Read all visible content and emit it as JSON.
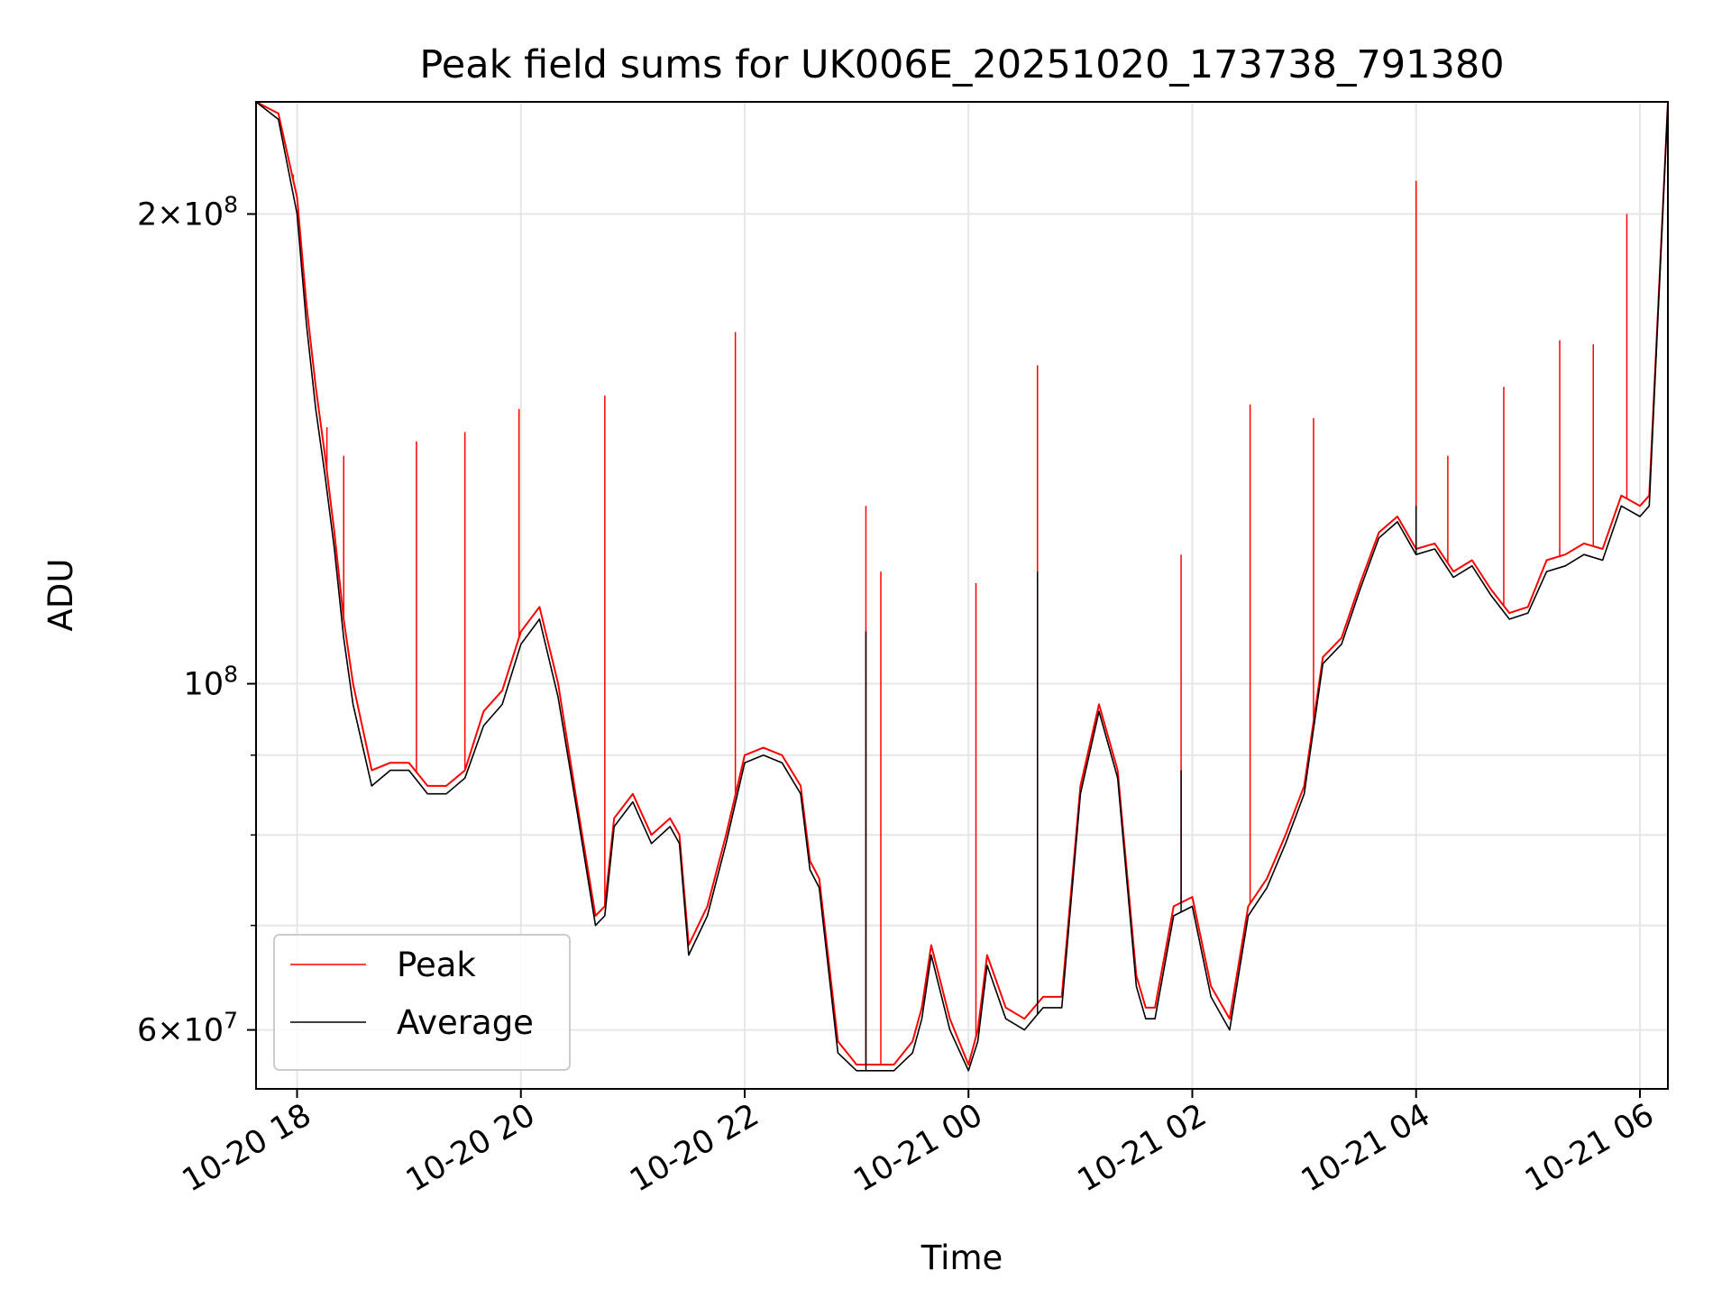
{
  "chart_data": {
    "type": "line",
    "title": "Peak field sums for UK006E_20251020_173738_791380",
    "xlabel": "Time",
    "ylabel": "ADU",
    "yscale": "log",
    "ylim": [
      55000000,
      236000000
    ],
    "xlim": [
      "2025-10-20 17:38",
      "2025-10-21 06:15"
    ],
    "grid": true,
    "legend_position": "lower left",
    "x_ticks": [
      "10-20 18",
      "10-20 20",
      "10-20 22",
      "10-21 00",
      "10-21 02",
      "10-21 04",
      "10-21 06"
    ],
    "x_tick_values": [
      "2025-10-20 18:00",
      "2025-10-20 20:00",
      "2025-10-20 22:00",
      "2025-10-21 00:00",
      "2025-10-21 02:00",
      "2025-10-21 04:00",
      "2025-10-21 06:00"
    ],
    "y_ticks": [
      {
        "value": 200000000,
        "mantissa": "2",
        "base": "10",
        "exp": "8"
      },
      {
        "value": 100000000,
        "mantissa": "",
        "base": "10",
        "exp": "8"
      },
      {
        "value": 60000000,
        "mantissa": "6",
        "base": "10",
        "exp": "7"
      }
    ],
    "y_minor_gridlines": [
      70000000,
      80000000,
      90000000
    ],
    "series": [
      {
        "name": "Peak",
        "color": "#ff0000",
        "x": [
          "2025-10-20 17:38",
          "2025-10-20 17:50",
          "2025-10-20 18:00",
          "2025-10-20 18:05",
          "2025-10-20 18:10",
          "2025-10-20 18:15",
          "2025-10-20 18:20",
          "2025-10-20 18:25",
          "2025-10-20 18:30",
          "2025-10-20 18:40",
          "2025-10-20 18:50",
          "2025-10-20 19:00",
          "2025-10-20 19:10",
          "2025-10-20 19:20",
          "2025-10-20 19:30",
          "2025-10-20 19:40",
          "2025-10-20 19:50",
          "2025-10-20 20:00",
          "2025-10-20 20:10",
          "2025-10-20 20:20",
          "2025-10-20 20:30",
          "2025-10-20 20:40",
          "2025-10-20 20:45",
          "2025-10-20 20:50",
          "2025-10-20 21:00",
          "2025-10-20 21:10",
          "2025-10-20 21:20",
          "2025-10-20 21:25",
          "2025-10-20 21:30",
          "2025-10-20 21:40",
          "2025-10-20 21:50",
          "2025-10-20 22:00",
          "2025-10-20 22:10",
          "2025-10-20 22:20",
          "2025-10-20 22:30",
          "2025-10-20 22:35",
          "2025-10-20 22:40",
          "2025-10-20 22:50",
          "2025-10-20 23:00",
          "2025-10-20 23:10",
          "2025-10-20 23:20",
          "2025-10-20 23:30",
          "2025-10-20 23:35",
          "2025-10-20 23:40",
          "2025-10-20 23:50",
          "2025-10-21 00:00",
          "2025-10-21 00:05",
          "2025-10-21 00:10",
          "2025-10-21 00:20",
          "2025-10-21 00:30",
          "2025-10-21 00:40",
          "2025-10-21 00:50",
          "2025-10-21 01:00",
          "2025-10-21 01:10",
          "2025-10-21 01:20",
          "2025-10-21 01:30",
          "2025-10-21 01:35",
          "2025-10-21 01:40",
          "2025-10-21 01:50",
          "2025-10-21 02:00",
          "2025-10-21 02:10",
          "2025-10-21 02:20",
          "2025-10-21 02:30",
          "2025-10-21 02:40",
          "2025-10-21 02:50",
          "2025-10-21 03:00",
          "2025-10-21 03:10",
          "2025-10-21 03:20",
          "2025-10-21 03:30",
          "2025-10-21 03:40",
          "2025-10-21 03:50",
          "2025-10-21 04:00",
          "2025-10-21 04:10",
          "2025-10-21 04:20",
          "2025-10-21 04:30",
          "2025-10-21 04:40",
          "2025-10-21 04:50",
          "2025-10-21 05:00",
          "2025-10-21 05:10",
          "2025-10-21 05:20",
          "2025-10-21 05:30",
          "2025-10-21 05:40",
          "2025-10-21 05:50",
          "2025-10-21 06:00",
          "2025-10-21 06:05",
          "2025-10-21 06:15"
        ],
        "y": [
          240000000,
          232000000,
          205000000,
          175000000,
          155000000,
          140000000,
          125000000,
          110000000,
          100000000,
          88000000,
          89000000,
          89000000,
          86000000,
          86000000,
          88000000,
          96000000,
          99000000,
          108000000,
          112000000,
          100000000,
          84000000,
          71000000,
          72000000,
          82000000,
          85000000,
          80000000,
          82000000,
          80000000,
          68000000,
          72000000,
          80000000,
          90000000,
          91000000,
          90000000,
          86000000,
          77000000,
          75000000,
          59000000,
          57000000,
          57000000,
          57000000,
          59000000,
          62000000,
          68000000,
          61000000,
          57000000,
          60000000,
          67000000,
          62000000,
          61000000,
          63000000,
          63000000,
          86000000,
          97000000,
          88000000,
          65000000,
          62000000,
          62000000,
          72000000,
          73000000,
          64000000,
          61000000,
          72000000,
          75000000,
          80000000,
          86000000,
          104000000,
          107000000,
          116000000,
          125000000,
          128000000,
          122000000,
          123000000,
          118000000,
          120000000,
          115000000,
          111000000,
          112000000,
          120000000,
          121000000,
          123000000,
          122000000,
          132000000,
          130000000,
          132000000,
          240000000
        ],
        "spikes": [
          {
            "x": "2025-10-20 17:58",
            "y": 212000000
          },
          {
            "x": "2025-10-20 18:16",
            "y": 146000000
          },
          {
            "x": "2025-10-20 18:25",
            "y": 140000000
          },
          {
            "x": "2025-10-20 19:04",
            "y": 143000000
          },
          {
            "x": "2025-10-20 19:30",
            "y": 145000000
          },
          {
            "x": "2025-10-20 19:59",
            "y": 150000000
          },
          {
            "x": "2025-10-20 20:45",
            "y": 153000000
          },
          {
            "x": "2025-10-20 21:55",
            "y": 168000000
          },
          {
            "x": "2025-10-20 23:05",
            "y": 130000000
          },
          {
            "x": "2025-10-20 23:13",
            "y": 118000000
          },
          {
            "x": "2025-10-21 00:04",
            "y": 116000000
          },
          {
            "x": "2025-10-21 00:37",
            "y": 160000000
          },
          {
            "x": "2025-10-21 01:54",
            "y": 121000000
          },
          {
            "x": "2025-10-21 02:31",
            "y": 151000000
          },
          {
            "x": "2025-10-21 03:05",
            "y": 148000000
          },
          {
            "x": "2025-10-21 04:00",
            "y": 210000000
          },
          {
            "x": "2025-10-21 04:17",
            "y": 140000000
          },
          {
            "x": "2025-10-21 04:47",
            "y": 155000000
          },
          {
            "x": "2025-10-21 05:17",
            "y": 166000000
          },
          {
            "x": "2025-10-21 05:35",
            "y": 165000000
          },
          {
            "x": "2025-10-21 05:53",
            "y": 200000000
          }
        ]
      },
      {
        "name": "Average",
        "color": "#000000",
        "x": [
          "2025-10-20 17:38",
          "2025-10-20 17:50",
          "2025-10-20 18:00",
          "2025-10-20 18:05",
          "2025-10-20 18:10",
          "2025-10-20 18:15",
          "2025-10-20 18:20",
          "2025-10-20 18:25",
          "2025-10-20 18:30",
          "2025-10-20 18:40",
          "2025-10-20 18:50",
          "2025-10-20 19:00",
          "2025-10-20 19:10",
          "2025-10-20 19:20",
          "2025-10-20 19:30",
          "2025-10-20 19:40",
          "2025-10-20 19:50",
          "2025-10-20 20:00",
          "2025-10-20 20:10",
          "2025-10-20 20:20",
          "2025-10-20 20:30",
          "2025-10-20 20:40",
          "2025-10-20 20:45",
          "2025-10-20 20:50",
          "2025-10-20 21:00",
          "2025-10-20 21:10",
          "2025-10-20 21:20",
          "2025-10-20 21:25",
          "2025-10-20 21:30",
          "2025-10-20 21:40",
          "2025-10-20 21:50",
          "2025-10-20 22:00",
          "2025-10-20 22:10",
          "2025-10-20 22:20",
          "2025-10-20 22:30",
          "2025-10-20 22:35",
          "2025-10-20 22:40",
          "2025-10-20 22:50",
          "2025-10-20 23:00",
          "2025-10-20 23:10",
          "2025-10-20 23:20",
          "2025-10-20 23:30",
          "2025-10-20 23:35",
          "2025-10-20 23:40",
          "2025-10-20 23:50",
          "2025-10-21 00:00",
          "2025-10-21 00:05",
          "2025-10-21 00:10",
          "2025-10-21 00:20",
          "2025-10-21 00:30",
          "2025-10-21 00:40",
          "2025-10-21 00:50",
          "2025-10-21 01:00",
          "2025-10-21 01:10",
          "2025-10-21 01:20",
          "2025-10-21 01:30",
          "2025-10-21 01:35",
          "2025-10-21 01:40",
          "2025-10-21 01:50",
          "2025-10-21 02:00",
          "2025-10-21 02:10",
          "2025-10-21 02:20",
          "2025-10-21 02:30",
          "2025-10-21 02:40",
          "2025-10-21 02:50",
          "2025-10-21 03:00",
          "2025-10-21 03:10",
          "2025-10-21 03:20",
          "2025-10-21 03:30",
          "2025-10-21 03:40",
          "2025-10-21 03:50",
          "2025-10-21 04:00",
          "2025-10-21 04:10",
          "2025-10-21 04:20",
          "2025-10-21 04:30",
          "2025-10-21 04:40",
          "2025-10-21 04:50",
          "2025-10-21 05:00",
          "2025-10-21 05:10",
          "2025-10-21 05:20",
          "2025-10-21 05:30",
          "2025-10-21 05:40",
          "2025-10-21 05:50",
          "2025-10-21 06:00",
          "2025-10-21 06:05",
          "2025-10-21 06:15"
        ],
        "y": [
          240000000,
          230000000,
          200000000,
          170000000,
          150000000,
          136000000,
          122000000,
          107000000,
          97000000,
          86000000,
          88000000,
          88000000,
          85000000,
          85000000,
          87000000,
          94000000,
          97000000,
          106000000,
          110000000,
          98000000,
          83000000,
          70000000,
          71000000,
          81000000,
          84000000,
          79000000,
          81000000,
          79000000,
          67000000,
          71000000,
          79000000,
          89000000,
          90000000,
          89000000,
          85000000,
          76000000,
          74000000,
          58000000,
          56500000,
          56500000,
          56500000,
          58000000,
          61000000,
          67000000,
          60000000,
          56500000,
          59000000,
          66000000,
          61000000,
          60000000,
          62000000,
          62000000,
          85000000,
          96000000,
          87000000,
          64000000,
          61000000,
          61000000,
          71000000,
          72000000,
          63000000,
          60000000,
          71000000,
          74000000,
          79000000,
          85000000,
          103000000,
          106000000,
          115000000,
          124000000,
          127000000,
          121000000,
          122000000,
          117000000,
          119000000,
          114000000,
          110000000,
          111000000,
          118000000,
          119000000,
          121000000,
          120000000,
          130000000,
          128000000,
          130000000,
          240000000
        ],
        "spikes": [
          {
            "x": "2025-10-20 23:05",
            "y": 108000000
          },
          {
            "x": "2025-10-21 00:37",
            "y": 118000000
          },
          {
            "x": "2025-10-21 01:54",
            "y": 88000000
          },
          {
            "x": "2025-10-21 04:00",
            "y": 130000000
          }
        ]
      }
    ]
  }
}
